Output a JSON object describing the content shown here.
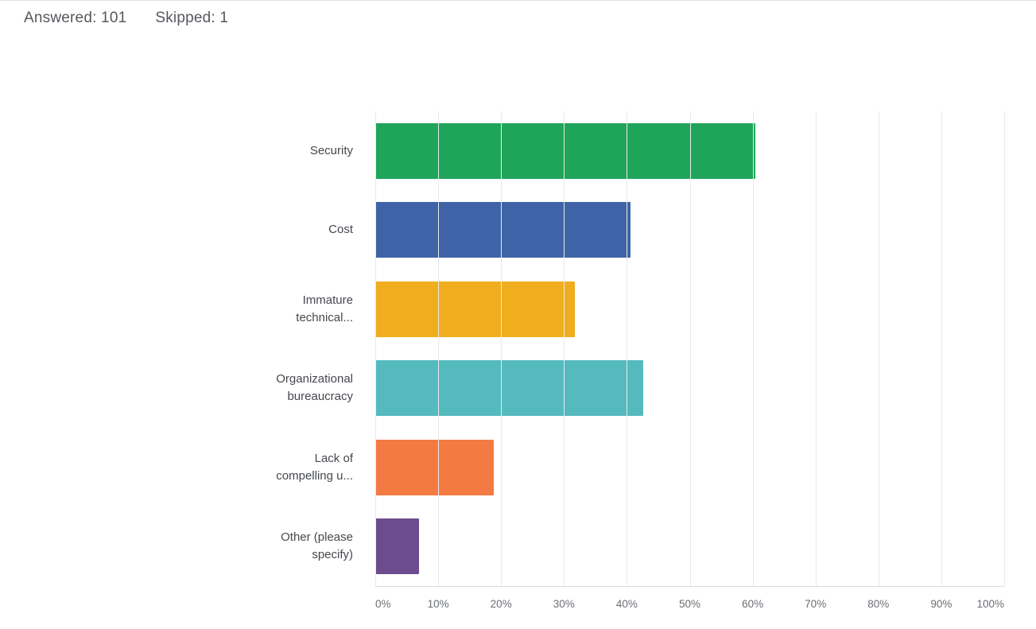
{
  "header": {
    "answered": "Answered: 101",
    "skipped": "Skipped: 1"
  },
  "chart_data": {
    "type": "bar",
    "orientation": "horizontal",
    "title": "",
    "categories": [
      "Security",
      "Cost",
      "Immature\ntechnical...",
      "Organizational\nbureaucracy",
      "Lack of\ncompelling u...",
      "Other (please\nspecify)"
    ],
    "values": [
      60.4,
      40.6,
      31.7,
      42.6,
      18.8,
      6.9
    ],
    "unit": "%",
    "colors": [
      "#1fa55a",
      "#3e63a7",
      "#f0ad1e",
      "#55babe",
      "#f37a42",
      "#6c4c8c"
    ],
    "x_ticks": [
      "0%",
      "10%",
      "20%",
      "30%",
      "40%",
      "50%",
      "60%",
      "70%",
      "80%",
      "90%",
      "100%"
    ],
    "xlim": [
      0,
      100
    ],
    "grid": "vertical-light",
    "legend": "none"
  }
}
